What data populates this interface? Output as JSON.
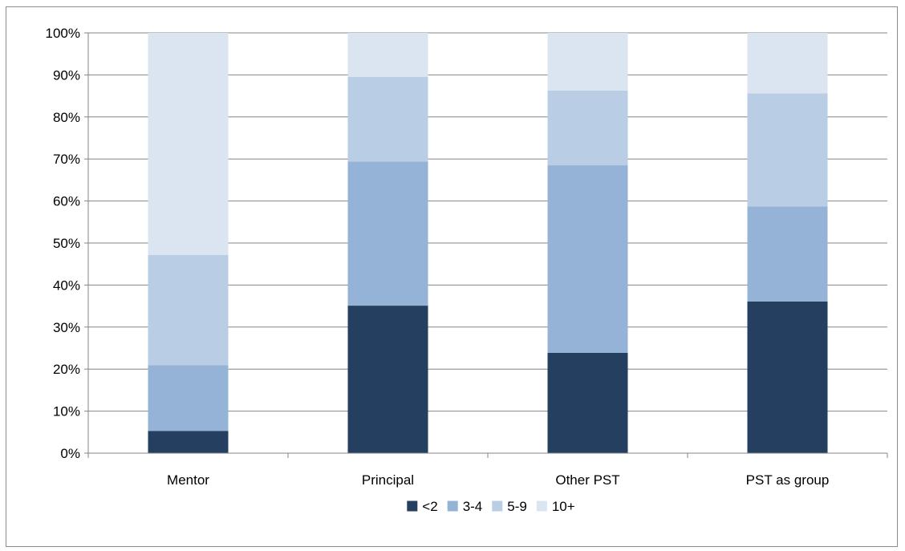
{
  "chart_data": {
    "type": "bar",
    "stacked": true,
    "percent": true,
    "categories": [
      "Mentor",
      "Principal",
      "Other PST",
      "PST as group"
    ],
    "series": [
      {
        "name": "<2",
        "color": "#243f60",
        "values": [
          5.3,
          35.1,
          23.9,
          36.1
        ]
      },
      {
        "name": "3-4",
        "color": "#95b3d7",
        "values": [
          15.6,
          34.3,
          44.6,
          22.6
        ]
      },
      {
        "name": "5-9",
        "color": "#b9cde5",
        "values": [
          26.3,
          20.1,
          17.8,
          26.9
        ]
      },
      {
        "name": "10+",
        "color": "#dbe5f1",
        "values": [
          52.8,
          10.5,
          13.7,
          14.4
        ]
      }
    ],
    "y_ticks": [
      "0%",
      "10%",
      "20%",
      "30%",
      "40%",
      "50%",
      "60%",
      "70%",
      "80%",
      "90%",
      "100%"
    ],
    "ylim": [
      0,
      100
    ],
    "grid": true,
    "legend_position": "bottom",
    "title": "",
    "xlabel": "",
    "ylabel": ""
  }
}
